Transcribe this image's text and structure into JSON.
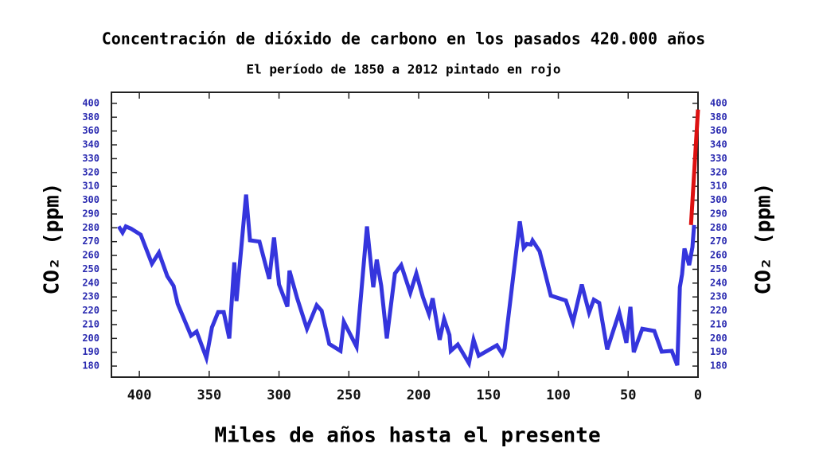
{
  "chart_data": {
    "type": "line",
    "title": "Concentración de dióxido de carbono en los pasados 420.000 años",
    "subtitle": "El período de 1850 a 2012 pintado en rojo",
    "xlabel": "Miles de años hasta el presente",
    "ylabel": "CO₂  (ppm)",
    "y2label": "CO₂  (ppm)",
    "xlim": [
      420,
      0
    ],
    "xticks": [
      400,
      350,
      300,
      250,
      200,
      150,
      100,
      50,
      0
    ],
    "ylim": [
      172,
      416
    ],
    "yticks": [
      180,
      190,
      200,
      210,
      220,
      230,
      240,
      250,
      260,
      270,
      280,
      290,
      300,
      310,
      320,
      330,
      340,
      360,
      380,
      400
    ],
    "y2lim": [
      172,
      416
    ],
    "y2ticks": [
      180,
      190,
      200,
      210,
      220,
      230,
      240,
      250,
      260,
      270,
      280,
      290,
      300,
      310,
      320,
      330,
      340,
      360,
      380,
      400
    ],
    "series": [
      {
        "color": "#3535dd",
        "x": [
          414.8,
          412,
          409.7,
          406,
          399,
          391,
          386,
          380,
          375.5,
          372.6,
          363,
          359,
          352,
          348,
          343.6,
          339.6,
          335.6,
          332,
          330.5,
          323.6,
          320.8,
          314,
          307,
          303.6,
          300,
          294,
          292.5,
          287,
          280,
          273,
          269.5,
          264,
          256,
          253.6,
          244.5,
          237,
          232.5,
          230,
          226.8,
          222.8,
          217,
          212.5,
          206,
          201.7,
          197,
          192.6,
          190,
          185,
          181.8,
          178,
          177,
          172,
          164,
          160.7,
          157,
          144,
          140,
          138.5,
          127.6,
          124.8,
          122.5,
          119.7,
          118.5,
          113.4,
          105.4,
          94.6,
          89.5,
          83.2,
          78,
          74.6,
          70.7,
          65,
          56.4,
          51.3,
          48.4,
          46,
          39.9,
          31.3,
          26,
          18.8,
          14.8,
          13,
          11.4,
          9.7,
          6.3,
          4,
          2.8
        ],
        "values": [
          281,
          276.5,
          281,
          279.4,
          275,
          254,
          262,
          245,
          238,
          225,
          202,
          205,
          186,
          208,
          219,
          219,
          200,
          255,
          227,
          304,
          271,
          270,
          243,
          273,
          239,
          223,
          249,
          229,
          207,
          224,
          220,
          196,
          191,
          212,
          194,
          281,
          237,
          257,
          238,
          200,
          247,
          253,
          233,
          247,
          230,
          217.6,
          229,
          199,
          214,
          202.5,
          191,
          195.6,
          182,
          199,
          187.5,
          195,
          188.7,
          192.7,
          284.6,
          265.5,
          268.4,
          267.9,
          270.8,
          263,
          231,
          227.4,
          211.8,
          239,
          218.7,
          228,
          225.7,
          192,
          218.7,
          196.8,
          222.8,
          190,
          207,
          205.4,
          190.4,
          191,
          180.6,
          237,
          246.5,
          265,
          253,
          266,
          282
        ]
      },
      {
        "color": "#dd1111",
        "x": [
          5,
          0
        ],
        "values": [
          282,
          391
        ]
      }
    ]
  }
}
